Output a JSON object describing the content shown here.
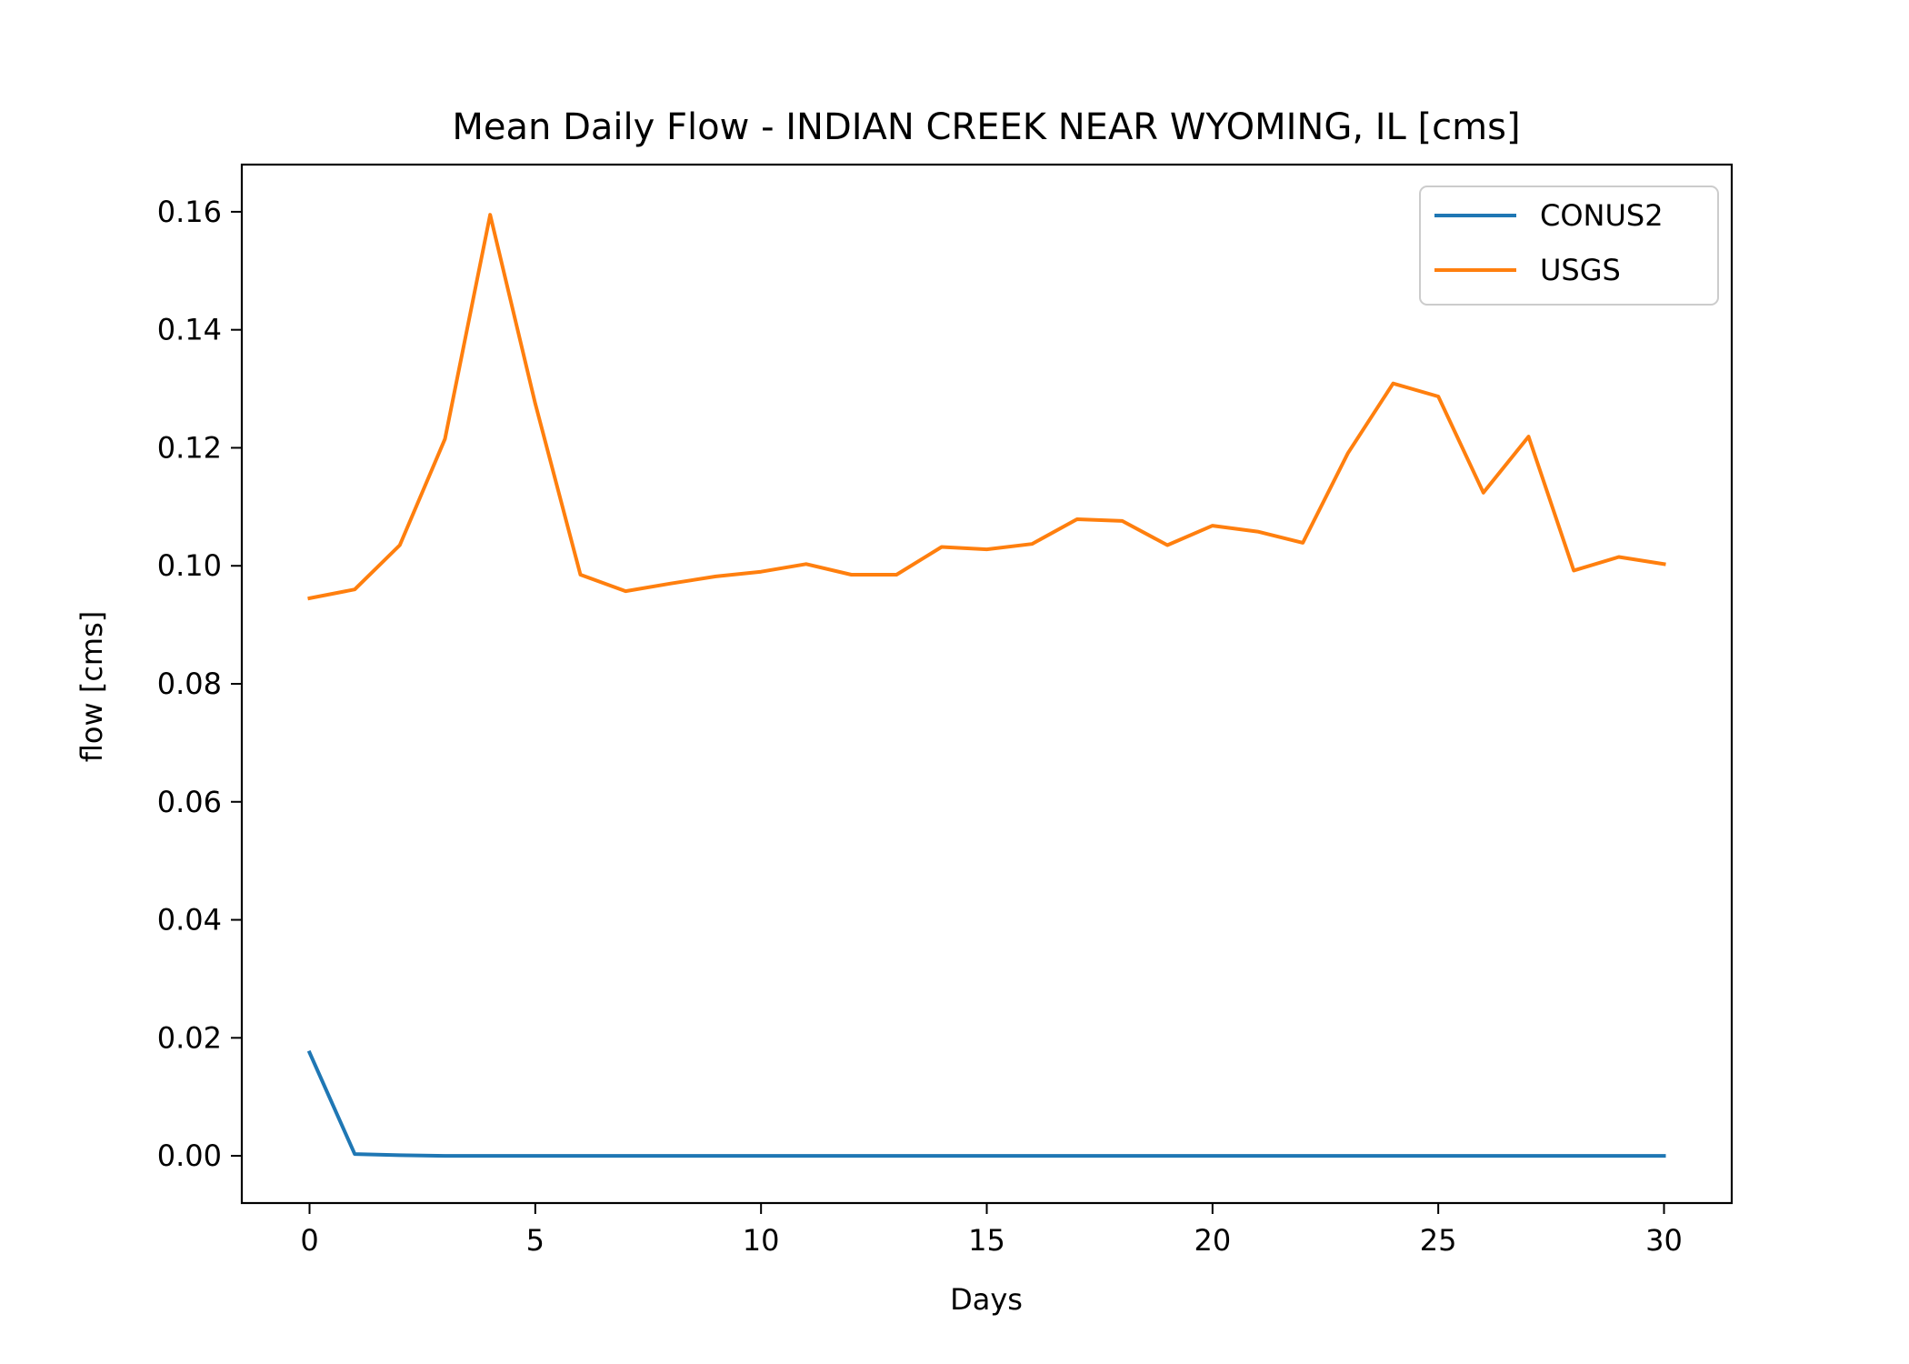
{
  "chart_data": {
    "type": "line",
    "title": "Mean Daily Flow - INDIAN CREEK NEAR WYOMING, IL [cms]",
    "xlabel": "Days",
    "ylabel": "flow [cms]",
    "xlim": [
      -1.5,
      31.5
    ],
    "ylim": [
      -0.008,
      0.168
    ],
    "xticks": [
      0,
      5,
      10,
      15,
      20,
      25,
      30
    ],
    "xtick_labels": [
      "0",
      "5",
      "10",
      "15",
      "20",
      "25",
      "30"
    ],
    "yticks": [
      0.0,
      0.02,
      0.04,
      0.06,
      0.08,
      0.1,
      0.12,
      0.14,
      0.16
    ],
    "ytick_labels": [
      "0.00",
      "0.02",
      "0.04",
      "0.06",
      "0.08",
      "0.10",
      "0.12",
      "0.14",
      "0.16"
    ],
    "grid": false,
    "legend_position": "top-right",
    "x": [
      0,
      1,
      2,
      3,
      4,
      5,
      6,
      7,
      8,
      9,
      10,
      11,
      12,
      13,
      14,
      15,
      16,
      17,
      18,
      19,
      20,
      21,
      22,
      23,
      24,
      25,
      26,
      27,
      28,
      29,
      30
    ],
    "series": [
      {
        "name": "CONUS2",
        "color": "#1f77b4",
        "values": [
          0.0175,
          0.0003,
          0.0001,
          0.0,
          0.0,
          0.0,
          0.0,
          0.0,
          0.0,
          0.0,
          0.0,
          0.0,
          0.0,
          0.0,
          0.0,
          0.0,
          0.0,
          0.0,
          0.0,
          0.0,
          0.0,
          0.0,
          0.0,
          0.0,
          0.0,
          0.0,
          0.0,
          0.0,
          0.0,
          0.0,
          0.0
        ]
      },
      {
        "name": "USGS",
        "color": "#ff7f0e",
        "values": [
          0.0945,
          0.096,
          0.1035,
          0.1215,
          0.1595,
          0.1275,
          0.0985,
          0.0957,
          0.097,
          0.0982,
          0.099,
          0.1003,
          0.0985,
          0.0985,
          0.1032,
          0.1028,
          0.1037,
          0.1079,
          0.1076,
          0.1035,
          0.1068,
          0.1058,
          0.1039,
          0.1191,
          0.1309,
          0.1287,
          0.1124,
          0.1219,
          0.0992,
          0.1015,
          0.1003
        ]
      }
    ]
  }
}
